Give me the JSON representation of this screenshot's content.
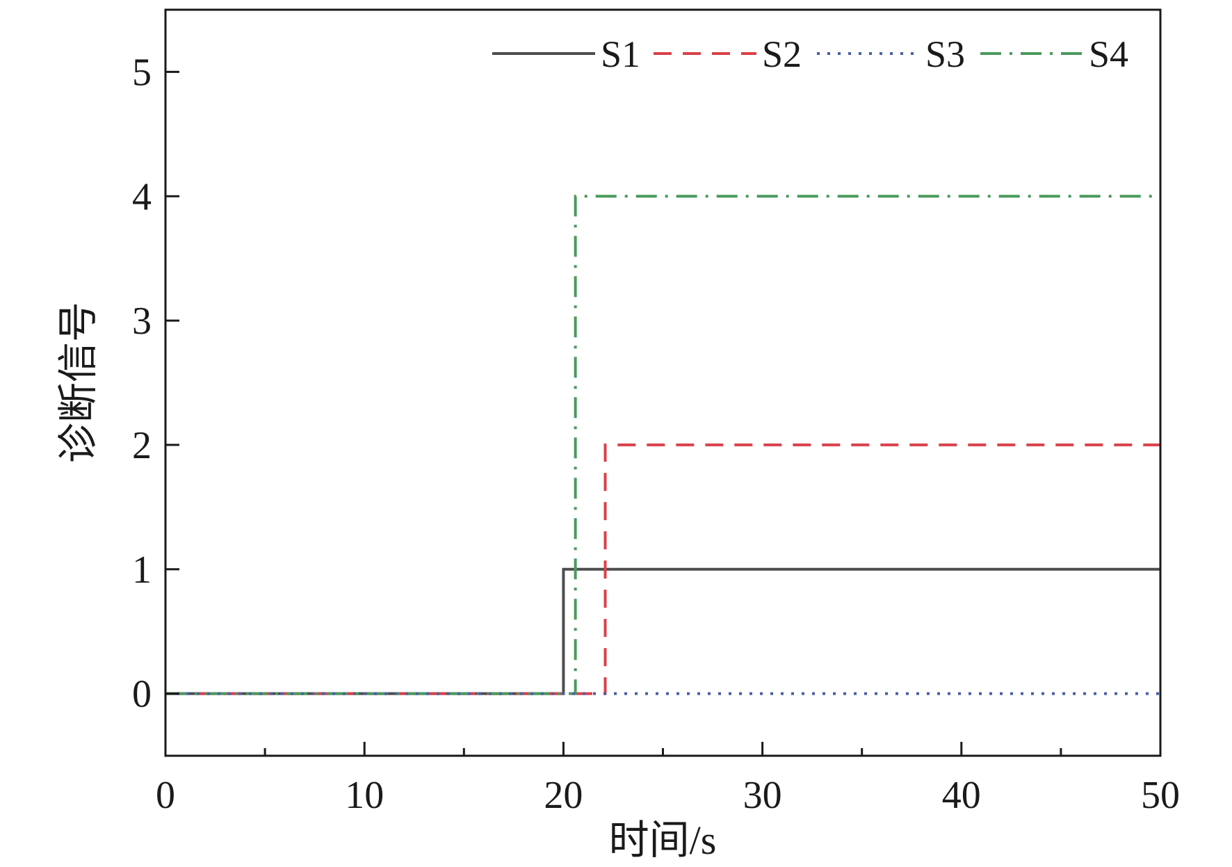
{
  "chart_data": {
    "type": "line",
    "step": true,
    "xlabel": "时间/s",
    "ylabel": "诊断信号",
    "xlim": [
      0,
      50
    ],
    "ylim": [
      -0.5,
      5.5
    ],
    "xticks": [
      0,
      10,
      20,
      30,
      40,
      50
    ],
    "xtick_labels": [
      "0",
      "10",
      "20",
      "30",
      "40",
      "50"
    ],
    "yticks": [
      0,
      1,
      2,
      3,
      4,
      5
    ],
    "ytick_labels": [
      "0",
      "1",
      "2",
      "3",
      "4",
      "5"
    ],
    "x_minor_ticks": [
      5,
      15,
      25,
      35,
      45
    ],
    "grid": false,
    "legend_position": "top-right",
    "series": [
      {
        "name": "S1",
        "color": "#4d4d4d",
        "dash": "solid",
        "x": [
          0,
          20,
          20,
          50
        ],
        "y": [
          0,
          0,
          1,
          1
        ]
      },
      {
        "name": "S2",
        "color": "#d9414a",
        "dash": "dashed",
        "x": [
          0,
          22.1,
          22.1,
          50
        ],
        "y": [
          0,
          0,
          2,
          2
        ]
      },
      {
        "name": "S3",
        "color": "#4a5fa8",
        "dash": "dotted",
        "x": [
          0,
          50
        ],
        "y": [
          0,
          0
        ]
      },
      {
        "name": "S4",
        "color": "#4a9a5c",
        "dash": "dash-dot",
        "x": [
          0,
          20.6,
          20.6,
          50
        ],
        "y": [
          0,
          0,
          4,
          4
        ]
      }
    ]
  }
}
